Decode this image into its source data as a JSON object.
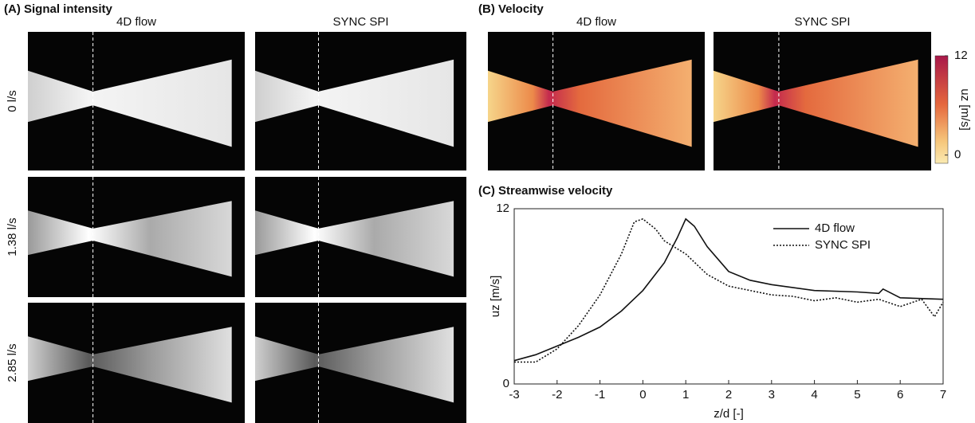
{
  "panel_a": {
    "title": "(A) Signal intensity",
    "columns": [
      "4D flow",
      "SYNC SPI"
    ],
    "rows": [
      "0 l/s",
      "1.38 l/s",
      "2.85 l/s"
    ]
  },
  "panel_b": {
    "title": "(B) Velocity",
    "columns": [
      "4D flow",
      "SYNC SPI"
    ],
    "colorbar": {
      "label": "uz [m/s]",
      "lim": [
        -1,
        12
      ],
      "ticks": [
        0,
        12
      ]
    }
  },
  "chart_data": {
    "type": "line",
    "title": "(C) Streamwise velocity",
    "xlabel": "z/d [-]",
    "ylabel": "uz [m/s]",
    "xlim": [
      -3,
      7
    ],
    "xticks": [
      -3,
      -2,
      -1,
      0,
      1,
      2,
      3,
      4,
      5,
      6,
      7
    ],
    "ylim": [
      0,
      12
    ],
    "yticks": [
      0,
      12
    ],
    "series": [
      {
        "name": "4D flow",
        "color": "#111111",
        "line_style": "solid",
        "x": [
          -3,
          -2.5,
          -2,
          -1.5,
          -1,
          -0.5,
          0,
          0.5,
          0.8,
          1,
          1.2,
          1.5,
          2,
          2.5,
          3,
          4,
          5,
          5.5,
          5.6,
          6,
          7
        ],
        "values": [
          1.6,
          2.0,
          2.6,
          3.2,
          3.9,
          5.0,
          6.4,
          8.3,
          10.0,
          11.3,
          10.8,
          9.4,
          7.7,
          7.1,
          6.8,
          6.4,
          6.3,
          6.2,
          6.5,
          5.9,
          5.8
        ]
      },
      {
        "name": "SYNC SPI",
        "color": "#111111",
        "line_style": "dotted",
        "x": [
          -3,
          -2.5,
          -2,
          -1.5,
          -1,
          -0.5,
          -0.2,
          0,
          0.3,
          0.5,
          1,
          1.5,
          2,
          2.5,
          3,
          3.5,
          4,
          4.5,
          5,
          5.5,
          6,
          6.5,
          6.8,
          7
        ],
        "values": [
          1.5,
          1.5,
          2.4,
          4.0,
          6.1,
          8.9,
          11.1,
          11.3,
          10.6,
          9.8,
          8.9,
          7.5,
          6.7,
          6.4,
          6.1,
          6.0,
          5.7,
          5.9,
          5.6,
          5.8,
          5.3,
          5.8,
          4.6,
          5.6
        ]
      }
    ]
  }
}
